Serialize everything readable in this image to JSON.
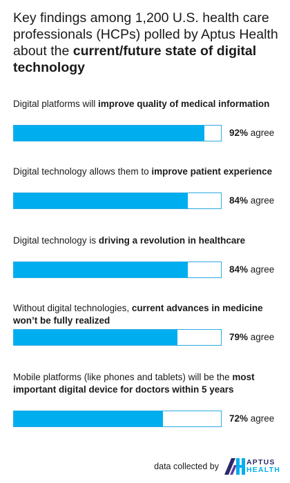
{
  "title": {
    "part1": "Key findings among 1,200 U.S. health care professionals (HCPs) polled by Aptus Health about the ",
    "bold": "current/future state of digital technology"
  },
  "colors": {
    "bar": "#00aeef",
    "track_border": "#29a9e1",
    "logo_navy": "#2b2a6b"
  },
  "chart_data": {
    "type": "bar",
    "orientation": "horizontal",
    "xlim": [
      0,
      100
    ],
    "unit_suffix": "% agree",
    "categories": [
      [
        {
          "t": "Digital platforms will ",
          "b": false
        },
        {
          "t": "improve quality of medical information",
          "b": true
        }
      ],
      [
        {
          "t": "Digital technology allows them to ",
          "b": false
        },
        {
          "t": "improve patient experience",
          "b": true
        }
      ],
      [
        {
          "t": "Digital technology is ",
          "b": false
        },
        {
          "t": "driving a revolution in healthcare",
          "b": true
        }
      ],
      [
        {
          "t": "Without digital technologies, ",
          "b": false
        },
        {
          "t": "current advances in medicine won’t be fully realized",
          "b": true
        }
      ],
      [
        {
          "t": "Mobile platforms (like phones and tablets) will be the ",
          "b": false
        },
        {
          "t": "most important digital device for doctors within 5 years",
          "b": true
        }
      ]
    ],
    "values": [
      92,
      84,
      84,
      79,
      72
    ],
    "value_labels": [
      "92%",
      "84%",
      "84%",
      "79%",
      "72%"
    ],
    "value_suffix": " agree"
  },
  "footer": {
    "text": "data collected by",
    "logo_top": "APTUS",
    "logo_bottom": "HEALTH",
    "logo_icon": "aptus-logo-icon"
  }
}
